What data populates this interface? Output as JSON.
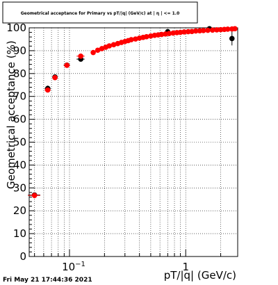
{
  "title": "Geometrical acceptance for Primary vs pT/|q| (GeV/c) at | η | <= 1.0",
  "timestamp": "Fri May 21 17:44:36 2021",
  "colors": {
    "series_red": "#ff0000",
    "series_black": "#000000",
    "grid": "#000000",
    "background": "#ffffff"
  },
  "chart_data": {
    "type": "scatter",
    "title": "Geometrical acceptance for Primary vs pT/|q| (GeV/c) at | η | <= 1.0",
    "xlabel": "pT/|q| (GeV/c)",
    "ylabel": "Geometrical acceptance (%)",
    "xscale": "log",
    "xlim": [
      0.045,
      2.8
    ],
    "ylim": [
      0,
      100
    ],
    "grid": true,
    "x_tick_labels": [
      {
        "value": 0.1,
        "base": "10",
        "exp": "−1"
      },
      {
        "value": 1,
        "base": "1",
        "exp": ""
      }
    ],
    "y_ticks": [
      0,
      10,
      20,
      30,
      40,
      50,
      60,
      70,
      80,
      90,
      100
    ],
    "series": [
      {
        "color": "#000000",
        "points": [
          {
            "x": 0.05,
            "y": 26.9,
            "xerr": 0.006,
            "yerr": 0.8
          },
          {
            "x": 0.065,
            "y": 73.5,
            "xerr": 0.004,
            "yerr": 1.2
          },
          {
            "x": 0.075,
            "y": 78.5,
            "xerr": 0.004,
            "yerr": 0.9
          },
          {
            "x": 0.095,
            "y": 83.7,
            "xerr": 0.006,
            "yerr": 0.8
          },
          {
            "x": 0.125,
            "y": 86.3,
            "xerr": 0.01,
            "yerr": 0.8
          },
          {
            "x": 0.7,
            "y": 98.3,
            "xerr": 0.02,
            "yerr": 0.6
          },
          {
            "x": 1.6,
            "y": 99.6,
            "xerr": 0.05,
            "yerr": 1.0
          },
          {
            "x": 2.5,
            "y": 95.3,
            "xerr": 0.05,
            "yerr": 3.0
          }
        ]
      },
      {
        "color": "#ff0000",
        "points": [
          {
            "x": 0.05,
            "y": 26.7,
            "xerr": 0.006
          },
          {
            "x": 0.065,
            "y": 72.8,
            "xerr": 0.004
          },
          {
            "x": 0.075,
            "y": 78.2,
            "xerr": 0.004
          },
          {
            "x": 0.095,
            "y": 83.6,
            "xerr": 0.006
          },
          {
            "x": 0.125,
            "y": 87.6,
            "xerr": 0.01
          },
          {
            "x": 0.16,
            "y": 89.2
          },
          {
            "x": 0.175,
            "y": 90.2
          },
          {
            "x": 0.19,
            "y": 90.9
          },
          {
            "x": 0.205,
            "y": 91.5
          },
          {
            "x": 0.22,
            "y": 92.1
          },
          {
            "x": 0.24,
            "y": 92.6
          },
          {
            "x": 0.26,
            "y": 93.1
          },
          {
            "x": 0.28,
            "y": 93.6
          },
          {
            "x": 0.3,
            "y": 94.0
          },
          {
            "x": 0.32,
            "y": 94.4
          },
          {
            "x": 0.34,
            "y": 94.8
          },
          {
            "x": 0.37,
            "y": 95.1
          },
          {
            "x": 0.4,
            "y": 95.5
          },
          {
            "x": 0.43,
            "y": 95.8
          },
          {
            "x": 0.46,
            "y": 96.1
          },
          {
            "x": 0.5,
            "y": 96.4
          },
          {
            "x": 0.54,
            "y": 96.7
          },
          {
            "x": 0.58,
            "y": 96.9
          },
          {
            "x": 0.62,
            "y": 97.1
          },
          {
            "x": 0.67,
            "y": 97.3
          },
          {
            "x": 0.72,
            "y": 97.5
          },
          {
            "x": 0.78,
            "y": 97.7
          },
          {
            "x": 0.84,
            "y": 97.9
          },
          {
            "x": 0.9,
            "y": 98.0
          },
          {
            "x": 0.97,
            "y": 98.2
          },
          {
            "x": 1.05,
            "y": 98.3
          },
          {
            "x": 1.13,
            "y": 98.4
          },
          {
            "x": 1.22,
            "y": 98.6
          },
          {
            "x": 1.32,
            "y": 98.7
          },
          {
            "x": 1.42,
            "y": 98.8
          },
          {
            "x": 1.55,
            "y": 98.9
          },
          {
            "x": 1.7,
            "y": 99.0
          },
          {
            "x": 1.85,
            "y": 99.1
          },
          {
            "x": 2.0,
            "y": 99.2
          },
          {
            "x": 2.15,
            "y": 99.3
          },
          {
            "x": 2.3,
            "y": 99.4
          },
          {
            "x": 2.5,
            "y": 99.5
          },
          {
            "x": 2.65,
            "y": 99.6
          }
        ]
      }
    ]
  }
}
